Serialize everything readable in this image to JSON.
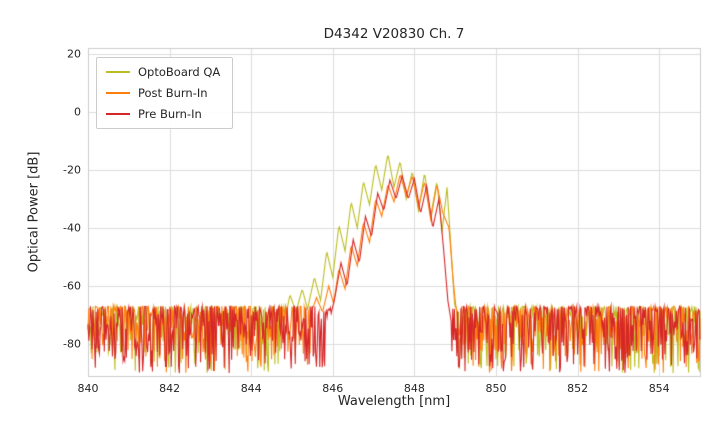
{
  "chart_data": {
    "type": "line",
    "title": "D4342 V20830 Ch. 7",
    "xlabel": "Wavelength [nm]",
    "ylabel": "Optical Power [dB]",
    "xlim": [
      840,
      855
    ],
    "ylim": [
      -91,
      22
    ],
    "xticks": [
      840,
      842,
      844,
      846,
      848,
      850,
      852,
      854
    ],
    "yticks": [
      20,
      0,
      -20,
      -40,
      -60,
      -80
    ],
    "grid": true,
    "grid_color": "#dddddd",
    "spine_color": "#cccccc",
    "legend_position": "upper left",
    "noise_floor": {
      "top_db": -67,
      "depth_db": 23,
      "step_nm": 0.02,
      "shape_exponent": 2.2
    },
    "series": [
      {
        "name": "OptoBoard QA",
        "color": "#bcbd22",
        "seed": 11,
        "peak_envelope": [
          [
            844.85,
            -70
          ],
          [
            844.95,
            -63
          ],
          [
            845.1,
            -69
          ],
          [
            845.25,
            -61
          ],
          [
            845.38,
            -68
          ],
          [
            845.55,
            -57
          ],
          [
            845.7,
            -65
          ],
          [
            845.85,
            -48
          ],
          [
            846.0,
            -57
          ],
          [
            846.15,
            -39
          ],
          [
            846.3,
            -48
          ],
          [
            846.45,
            -31
          ],
          [
            846.6,
            -40
          ],
          [
            846.75,
            -24
          ],
          [
            846.9,
            -32
          ],
          [
            847.05,
            -18
          ],
          [
            847.2,
            -27
          ],
          [
            847.35,
            -14.5
          ],
          [
            847.5,
            -26
          ],
          [
            847.65,
            -17
          ],
          [
            847.8,
            -30
          ],
          [
            847.95,
            -20.5
          ],
          [
            848.1,
            -34
          ],
          [
            848.25,
            -21
          ],
          [
            848.4,
            -36
          ],
          [
            848.55,
            -24
          ],
          [
            848.68,
            -41
          ],
          [
            848.8,
            -26
          ],
          [
            848.92,
            -52
          ],
          [
            849.0,
            -70
          ]
        ]
      },
      {
        "name": "Post Burn-In",
        "color": "#ff7f0e",
        "seed": 22,
        "peak_envelope": [
          [
            845.45,
            -70
          ],
          [
            845.6,
            -64
          ],
          [
            845.75,
            -69
          ],
          [
            845.9,
            -60
          ],
          [
            846.02,
            -66
          ],
          [
            846.15,
            -54
          ],
          [
            846.3,
            -61
          ],
          [
            846.45,
            -46
          ],
          [
            846.6,
            -53
          ],
          [
            846.75,
            -38
          ],
          [
            846.9,
            -45
          ],
          [
            847.05,
            -30
          ],
          [
            847.2,
            -36
          ],
          [
            847.35,
            -25
          ],
          [
            847.5,
            -31
          ],
          [
            847.65,
            -21.5
          ],
          [
            847.8,
            -29
          ],
          [
            847.95,
            -22
          ],
          [
            848.1,
            -33
          ],
          [
            848.25,
            -24
          ],
          [
            848.4,
            -37
          ],
          [
            848.55,
            -25
          ],
          [
            848.7,
            -35
          ],
          [
            848.85,
            -40
          ],
          [
            848.95,
            -58
          ],
          [
            849.05,
            -72
          ]
        ]
      },
      {
        "name": "Pre Burn-In",
        "color": "#d62728",
        "seed": 33,
        "peak_envelope": [
          [
            845.95,
            -70
          ],
          [
            846.05,
            -64
          ],
          [
            846.2,
            -52
          ],
          [
            846.35,
            -60
          ],
          [
            846.5,
            -44
          ],
          [
            846.65,
            -52
          ],
          [
            846.8,
            -36
          ],
          [
            846.95,
            -43
          ],
          [
            847.1,
            -28
          ],
          [
            847.25,
            -34
          ],
          [
            847.4,
            -23.5
          ],
          [
            847.55,
            -30
          ],
          [
            847.7,
            -22
          ],
          [
            847.85,
            -30
          ],
          [
            848.0,
            -23
          ],
          [
            848.15,
            -35
          ],
          [
            848.3,
            -25.5
          ],
          [
            848.45,
            -40
          ],
          [
            848.6,
            -30
          ],
          [
            848.72,
            -48
          ],
          [
            848.82,
            -65
          ],
          [
            848.9,
            -72
          ]
        ]
      }
    ]
  }
}
